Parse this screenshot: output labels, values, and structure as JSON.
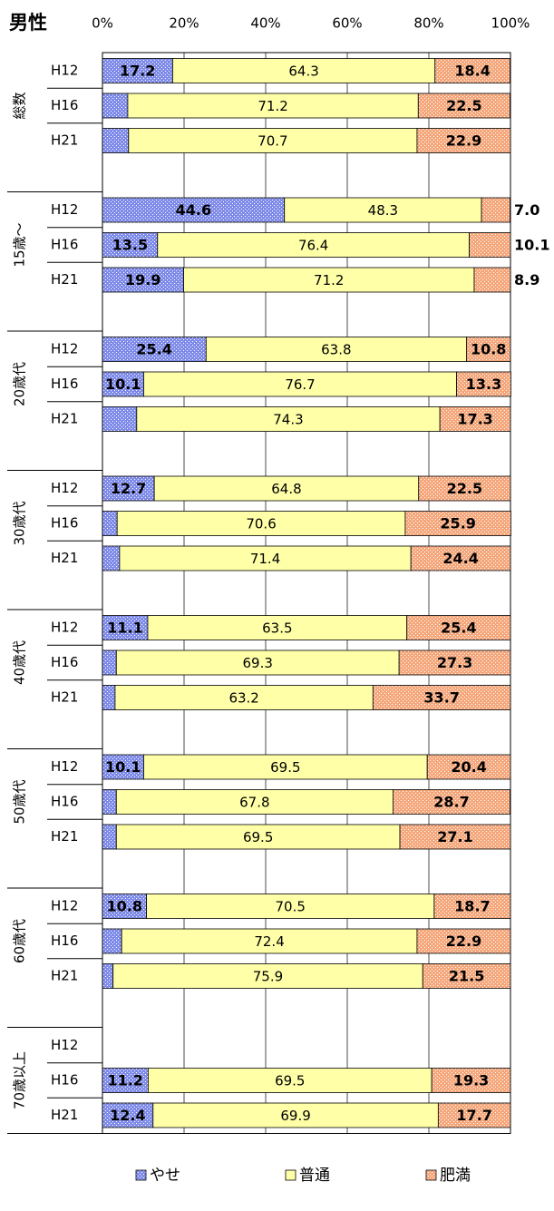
{
  "chart_data": {
    "type": "stacked-bar-horizontal",
    "title": "男性",
    "groups": [
      "総数",
      "15歳～",
      "20歳代",
      "30歳代",
      "40歳代",
      "50歳代",
      "60歳代",
      "70歳以上"
    ],
    "categories": [
      "H12",
      "H16",
      "H21",
      "H12",
      "H16",
      "H21",
      "H12",
      "H16",
      "H21",
      "H12",
      "H16",
      "H21",
      "H12",
      "H16",
      "H21",
      "H12",
      "H16",
      "H21",
      "H12",
      "H16",
      "H21",
      "H12",
      "H16",
      "H21"
    ],
    "xlim": [
      0,
      100
    ],
    "xticks": [
      {
        "value": 0,
        "label": "0%"
      },
      {
        "value": 20,
        "label": "20%"
      },
      {
        "value": 40,
        "label": "40%"
      },
      {
        "value": 60,
        "label": "60%"
      },
      {
        "value": 80,
        "label": "80%"
      },
      {
        "value": 100,
        "label": "100%"
      }
    ],
    "grid": true,
    "legend": "bottom",
    "series": [
      {
        "name": "やせ",
        "color": "#7f8be8",
        "values": [
          17.2,
          6.2,
          6.4,
          44.6,
          13.5,
          19.9,
          25.4,
          10.1,
          8.4,
          12.7,
          3.6,
          4.2,
          11.1,
          3.4,
          3.1,
          10.1,
          3.4,
          3.4,
          10.8,
          4.7,
          2.6,
          null,
          11.2,
          12.4
        ]
      },
      {
        "name": "普通",
        "color": "#ffffa8",
        "values": [
          64.3,
          71.2,
          70.7,
          48.3,
          76.4,
          71.2,
          63.8,
          76.7,
          74.3,
          64.8,
          70.6,
          71.4,
          63.5,
          69.3,
          63.2,
          69.5,
          67.8,
          69.5,
          70.5,
          72.4,
          75.9,
          null,
          69.5,
          69.9
        ]
      },
      {
        "name": "肥満",
        "color": "#f5a77c",
        "values": [
          18.4,
          22.5,
          22.9,
          7,
          10.1,
          8.9,
          10.8,
          13.3,
          17.3,
          22.5,
          25.9,
          24.4,
          25.4,
          27.3,
          33.7,
          20.4,
          28.7,
          27.1,
          18.7,
          22.9,
          21.5,
          null,
          19.3,
          17.7
        ],
        "value_labels": [
          "18.4",
          "22.5",
          "22.9",
          "7.0",
          "10.1",
          "8.9",
          "10.8",
          "13.3",
          "17.3",
          "22.5",
          "25.9",
          "24.4",
          "25.4",
          "27.3",
          "33.7",
          "20.4",
          "28.7",
          "27.1",
          "18.7",
          "22.9",
          "21.5",
          null,
          "19.3",
          "17.7"
        ]
      }
    ]
  }
}
